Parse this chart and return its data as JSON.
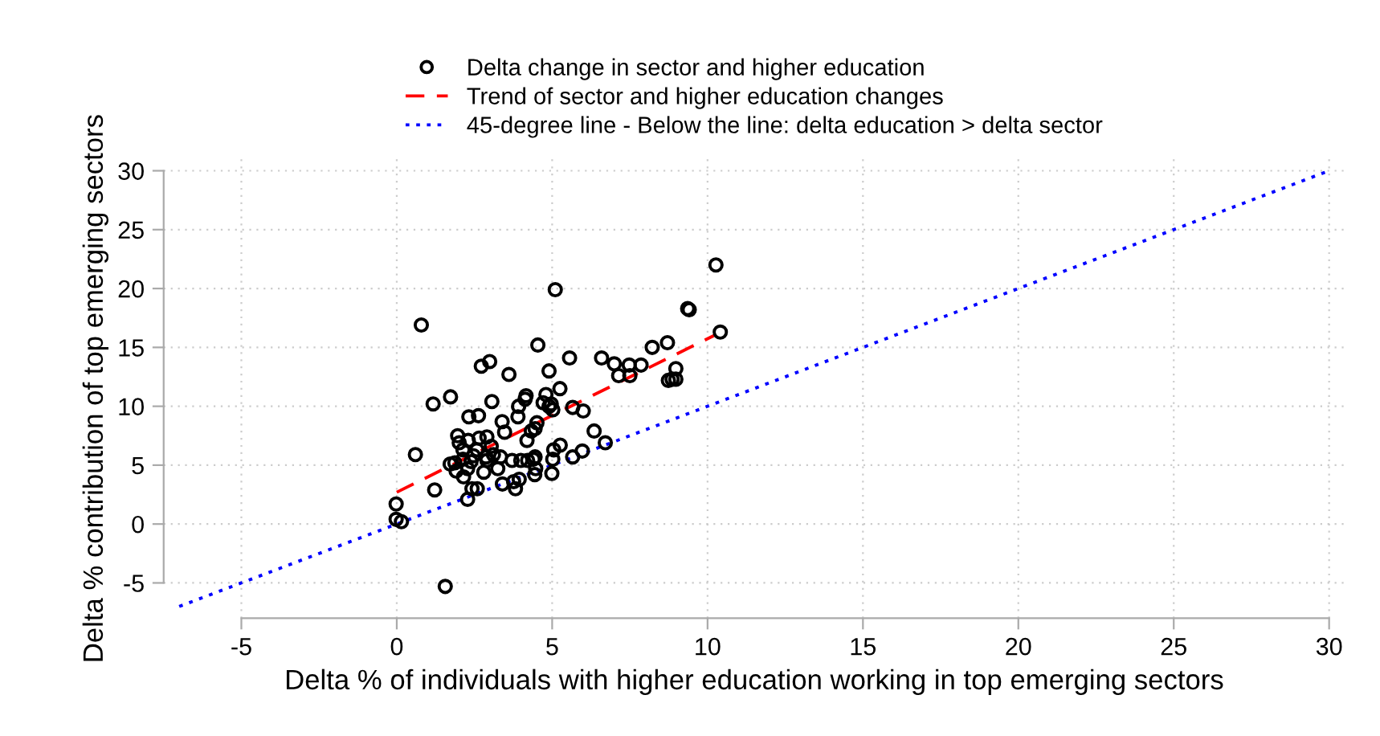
{
  "chart_data": {
    "type": "scatter",
    "xlabel": "Delta % of individuals with higher education working in top emerging sectors",
    "ylabel": "Delta % contribution of top emerging sectors",
    "xlim": [
      -7.5,
      30.5
    ],
    "ylim": [
      -8,
      31
    ],
    "xticks": [
      -5,
      0,
      5,
      10,
      15,
      20,
      25,
      30
    ],
    "yticks": [
      -5,
      0,
      5,
      10,
      15,
      20,
      25,
      30
    ],
    "grid": true,
    "legend": "top",
    "series": [
      {
        "name": "Delta change in sector and higher education",
        "color": "#000000",
        "marker": "circle",
        "x": [
          10.27,
          5.1,
          0.79,
          9.36,
          9.41,
          10.41,
          4.54,
          8.71,
          8.22,
          6.59,
          5.56,
          2.99,
          2.72,
          7.0,
          7.48,
          7.86,
          4.9,
          3.61,
          8.98,
          7.14,
          7.5,
          8.74,
          8.86,
          8.98,
          1.17,
          1.73,
          3.06,
          2.32,
          2.63,
          4.16,
          4.13,
          3.92,
          4.8,
          5.25,
          4.71,
          4.97,
          5.02,
          4.9,
          5.66,
          6.0,
          3.9,
          3.39,
          4.51,
          4.33,
          4.45,
          4.19,
          2.9,
          3.47,
          1.96,
          2.3,
          2.01,
          2.65,
          3.04,
          2.58,
          2.13,
          6.35,
          6.71,
          5.97,
          5.66,
          5.26,
          5.05,
          5.02,
          4.99,
          4.45,
          4.39,
          4.21,
          3.99,
          3.71,
          3.34,
          3.11,
          2.87,
          2.9,
          2.47,
          2.39,
          2.13,
          1.87,
          1.72,
          1.91,
          2.15,
          2.28,
          2.8,
          3.25,
          3.4,
          3.76,
          3.82,
          3.94,
          4.44,
          4.47,
          2.42,
          2.59,
          2.28,
          1.22,
          0.6,
          -0.02,
          -0.02,
          0.15,
          1.56
        ],
        "values": [
          22.0,
          19.9,
          16.9,
          18.3,
          18.2,
          16.3,
          15.2,
          15.4,
          15.0,
          14.1,
          14.1,
          13.8,
          13.4,
          13.6,
          13.5,
          13.5,
          13.0,
          12.7,
          13.2,
          12.6,
          12.6,
          12.2,
          12.3,
          12.3,
          10.2,
          10.8,
          10.4,
          9.1,
          9.2,
          10.9,
          10.6,
          10.0,
          11.0,
          11.5,
          10.3,
          10.2,
          9.7,
          10.0,
          9.9,
          9.6,
          9.1,
          8.7,
          8.6,
          7.9,
          8.1,
          7.1,
          7.4,
          7.8,
          7.5,
          7.1,
          6.9,
          7.3,
          6.6,
          6.3,
          6.3,
          7.9,
          6.9,
          6.2,
          5.7,
          6.7,
          6.3,
          5.5,
          4.3,
          5.7,
          5.5,
          5.4,
          5.4,
          5.4,
          5.7,
          5.9,
          5.7,
          5.4,
          5.8,
          5.3,
          5.5,
          5.2,
          5.1,
          4.5,
          4.0,
          4.7,
          4.4,
          4.7,
          3.4,
          3.6,
          3.0,
          3.8,
          4.2,
          4.7,
          3.0,
          3.0,
          2.1,
          2.9,
          5.9,
          1.7,
          0.4,
          0.2,
          -5.3
        ]
      },
      {
        "name": "Trend of sector and higher education changes",
        "type": "line",
        "color": "#ff0000",
        "line_style": "dashed",
        "x": [
          0,
          10.2
        ],
        "values": [
          2.7,
          16.0
        ]
      },
      {
        "name": "45-degree line - Below the line: delta education > delta sector",
        "type": "line",
        "color": "#0000ff",
        "line_style": "dotted",
        "x": [
          -7,
          30
        ],
        "values": [
          -7,
          30
        ]
      }
    ]
  }
}
